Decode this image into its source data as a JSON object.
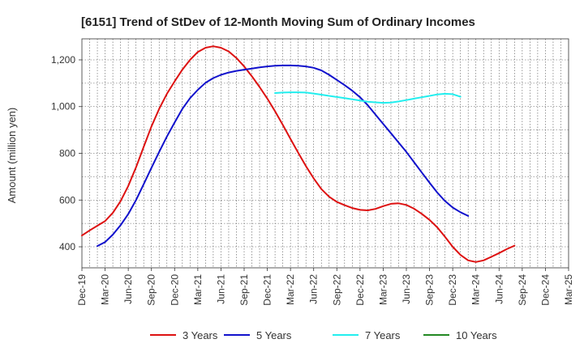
{
  "chart_data": {
    "type": "line",
    "title": "[6151]  Trend of StDev of 12-Month Moving Sum of Ordinary Incomes",
    "ylabel": "Amount (million yen)",
    "xlabel": "",
    "x_ticks": [
      "Dec-19",
      "Mar-20",
      "Jun-20",
      "Sep-20",
      "Dec-20",
      "Mar-21",
      "Jun-21",
      "Sep-21",
      "Dec-21",
      "Mar-22",
      "Jun-22",
      "Sep-22",
      "Dec-22",
      "Mar-23",
      "Jun-23",
      "Sep-23",
      "Dec-23",
      "Mar-24",
      "Jun-24",
      "Sep-24",
      "Dec-24",
      "Mar-25"
    ],
    "y_ticks": [
      400,
      600,
      800,
      1000,
      1200
    ],
    "y_tick_labels": [
      "400",
      "600",
      "800",
      "1,000",
      "1,200"
    ],
    "ylim": [
      310,
      1290
    ],
    "grid": true,
    "legend_position": "bottom",
    "series": [
      {
        "name": "3 Years",
        "color": "#dd1111",
        "points": [
          [
            0,
            448
          ],
          [
            1,
            470
          ],
          [
            2,
            490
          ],
          [
            3,
            510
          ],
          [
            4,
            545
          ],
          [
            5,
            595
          ],
          [
            6,
            660
          ],
          [
            7,
            740
          ],
          [
            8,
            828
          ],
          [
            9,
            915
          ],
          [
            10,
            990
          ],
          [
            11,
            1055
          ],
          [
            12,
            1108
          ],
          [
            13,
            1158
          ],
          [
            14,
            1200
          ],
          [
            15,
            1234
          ],
          [
            16,
            1252
          ],
          [
            17,
            1258
          ],
          [
            18,
            1252
          ],
          [
            19,
            1236
          ],
          [
            20,
            1208
          ],
          [
            21,
            1172
          ],
          [
            22,
            1130
          ],
          [
            23,
            1084
          ],
          [
            24,
            1034
          ],
          [
            25,
            980
          ],
          [
            26,
            922
          ],
          [
            27,
            862
          ],
          [
            28,
            802
          ],
          [
            29,
            745
          ],
          [
            30,
            693
          ],
          [
            31,
            647
          ],
          [
            32,
            614
          ],
          [
            33,
            592
          ],
          [
            34,
            578
          ],
          [
            35,
            566
          ],
          [
            36,
            558
          ],
          [
            37,
            556
          ],
          [
            38,
            562
          ],
          [
            39,
            574
          ],
          [
            40,
            584
          ],
          [
            41,
            586
          ],
          [
            42,
            579
          ],
          [
            43,
            563
          ],
          [
            44,
            541
          ],
          [
            45,
            515
          ],
          [
            46,
            483
          ],
          [
            47,
            443
          ],
          [
            48,
            400
          ],
          [
            49,
            365
          ],
          [
            50,
            342
          ],
          [
            51,
            335
          ],
          [
            52,
            342
          ],
          [
            53,
            357
          ],
          [
            54,
            373
          ],
          [
            55,
            390
          ],
          [
            56,
            405
          ]
        ]
      },
      {
        "name": "5 Years",
        "color": "#1111cc",
        "points": [
          [
            2,
            403
          ],
          [
            3,
            420
          ],
          [
            4,
            452
          ],
          [
            5,
            492
          ],
          [
            6,
            540
          ],
          [
            7,
            600
          ],
          [
            8,
            668
          ],
          [
            9,
            738
          ],
          [
            10,
            806
          ],
          [
            11,
            872
          ],
          [
            12,
            932
          ],
          [
            13,
            990
          ],
          [
            14,
            1036
          ],
          [
            15,
            1072
          ],
          [
            16,
            1102
          ],
          [
            17,
            1122
          ],
          [
            18,
            1136
          ],
          [
            19,
            1146
          ],
          [
            20,
            1153
          ],
          [
            21,
            1158
          ],
          [
            22,
            1163
          ],
          [
            23,
            1168
          ],
          [
            24,
            1172
          ],
          [
            25,
            1175
          ],
          [
            26,
            1176
          ],
          [
            27,
            1176
          ],
          [
            28,
            1175
          ],
          [
            29,
            1172
          ],
          [
            30,
            1166
          ],
          [
            31,
            1155
          ],
          [
            32,
            1136
          ],
          [
            33,
            1114
          ],
          [
            34,
            1092
          ],
          [
            35,
            1068
          ],
          [
            36,
            1040
          ],
          [
            37,
            1006
          ],
          [
            38,
            966
          ],
          [
            39,
            926
          ],
          [
            40,
            886
          ],
          [
            41,
            846
          ],
          [
            42,
            806
          ],
          [
            43,
            762
          ],
          [
            44,
            718
          ],
          [
            45,
            674
          ],
          [
            46,
            632
          ],
          [
            47,
            596
          ],
          [
            48,
            568
          ],
          [
            49,
            548
          ],
          [
            50,
            532
          ]
        ]
      },
      {
        "name": "7 Years",
        "color": "#22eeee",
        "points": [
          [
            25,
            1058
          ],
          [
            26,
            1060
          ],
          [
            27,
            1061
          ],
          [
            28,
            1061
          ],
          [
            29,
            1060
          ],
          [
            30,
            1056
          ],
          [
            31,
            1051
          ],
          [
            32,
            1046
          ],
          [
            33,
            1041
          ],
          [
            34,
            1036
          ],
          [
            35,
            1031
          ],
          [
            36,
            1026
          ],
          [
            37,
            1021
          ],
          [
            38,
            1018
          ],
          [
            39,
            1016
          ],
          [
            40,
            1017
          ],
          [
            41,
            1022
          ],
          [
            42,
            1028
          ],
          [
            43,
            1034
          ],
          [
            44,
            1040
          ],
          [
            45,
            1046
          ],
          [
            46,
            1052
          ],
          [
            47,
            1055
          ],
          [
            48,
            1053
          ],
          [
            49,
            1042
          ]
        ]
      },
      {
        "name": "10 Years",
        "color": "#228822",
        "points": []
      }
    ]
  }
}
